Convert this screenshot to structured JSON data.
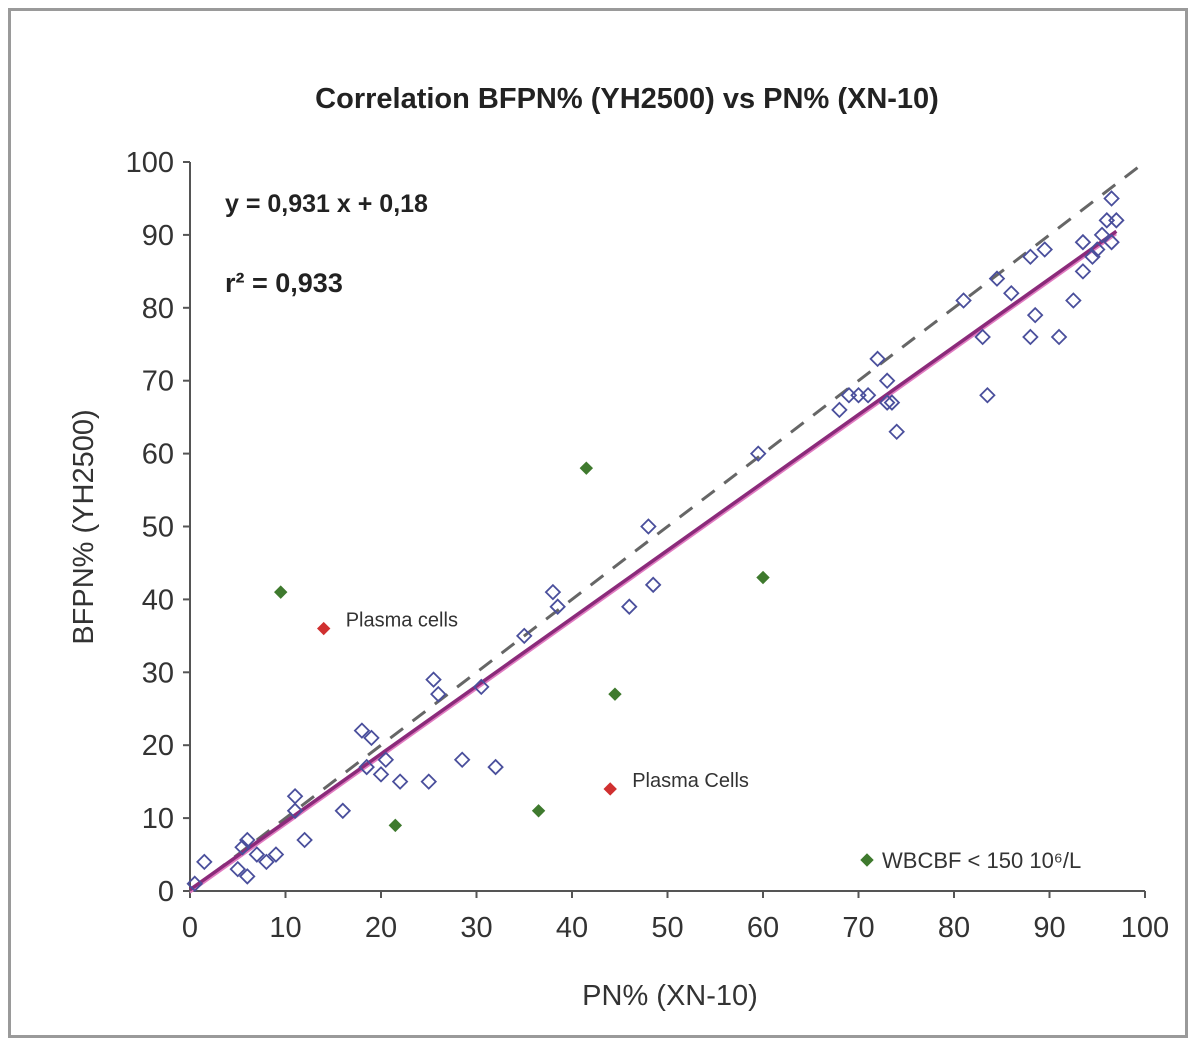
{
  "chart_data": {
    "type": "scatter",
    "title": "Correlation BFPN% (YH2500) vs PN% (XN-10)",
    "xlabel": "PN% (XN-10)",
    "ylabel": "BFPN% (YH2500)",
    "xlim": [
      0,
      100
    ],
    "ylim": [
      0,
      100
    ],
    "xticks": [
      0,
      10,
      20,
      30,
      40,
      50,
      60,
      70,
      80,
      90,
      100
    ],
    "yticks": [
      0,
      10,
      20,
      30,
      40,
      50,
      60,
      70,
      80,
      90,
      100
    ],
    "grid": false,
    "equation": "y = 0,931 x + 0,18",
    "r_squared": "r² = 0,933",
    "regression": {
      "slope": 0.931,
      "intercept": 0.18,
      "color": "#8b2a7a"
    },
    "identity_line": {
      "style": "dashed",
      "color": "#666666"
    },
    "series": [
      {
        "marker": "open-diamond",
        "color": "#4a4f9c",
        "points": [
          [
            0.5,
            1
          ],
          [
            1.5,
            4
          ],
          [
            5,
            3
          ],
          [
            5.5,
            6
          ],
          [
            6,
            7
          ],
          [
            6,
            2
          ],
          [
            7,
            5
          ],
          [
            8,
            4
          ],
          [
            9,
            5
          ],
          [
            11,
            13
          ],
          [
            11,
            11
          ],
          [
            12,
            7
          ],
          [
            16,
            11
          ],
          [
            18,
            22
          ],
          [
            18.5,
            17
          ],
          [
            19,
            21
          ],
          [
            20,
            16
          ],
          [
            20.5,
            18
          ],
          [
            22,
            15
          ],
          [
            25,
            15
          ],
          [
            25.5,
            29
          ],
          [
            26,
            27
          ],
          [
            28.5,
            18
          ],
          [
            30.5,
            28
          ],
          [
            32,
            17
          ],
          [
            35,
            35
          ],
          [
            38,
            41
          ],
          [
            38.5,
            39
          ],
          [
            46,
            39
          ],
          [
            48,
            50
          ],
          [
            48.5,
            42
          ],
          [
            59.5,
            60
          ],
          [
            68,
            66
          ],
          [
            69,
            68
          ],
          [
            70,
            68
          ],
          [
            71,
            68
          ],
          [
            72,
            73
          ],
          [
            73,
            70
          ],
          [
            73,
            67
          ],
          [
            73.5,
            67
          ],
          [
            74,
            63
          ],
          [
            81,
            81
          ],
          [
            83,
            76
          ],
          [
            83.5,
            68
          ],
          [
            84.5,
            84
          ],
          [
            86,
            82
          ],
          [
            88,
            87
          ],
          [
            88,
            76
          ],
          [
            88.5,
            79
          ],
          [
            89.5,
            88
          ],
          [
            91,
            76
          ],
          [
            92.5,
            81
          ],
          [
            93.5,
            89
          ],
          [
            93.5,
            85
          ],
          [
            94.5,
            87
          ],
          [
            95,
            88
          ],
          [
            95.5,
            90
          ],
          [
            96,
            92
          ],
          [
            96.5,
            95
          ],
          [
            96.5,
            89
          ],
          [
            97,
            92
          ]
        ]
      },
      {
        "name": "WBCBF < 150 10⁶/L",
        "marker": "filled-diamond",
        "color": "#3f7a2e",
        "points": [
          [
            9.5,
            41
          ],
          [
            21.5,
            9
          ],
          [
            36.5,
            11
          ],
          [
            41.5,
            58
          ],
          [
            44.5,
            27
          ],
          [
            60,
            43
          ]
        ]
      },
      {
        "marker": "filled-diamond",
        "color": "#d03030",
        "points": [
          [
            14,
            36
          ],
          [
            44,
            14
          ]
        ]
      }
    ],
    "annotations": [
      {
        "text": "Plasma cells",
        "x": 14,
        "y": 36
      },
      {
        "text": "Plasma Cells",
        "x": 44,
        "y": 14
      }
    ],
    "legend_position": "bottom-right"
  }
}
